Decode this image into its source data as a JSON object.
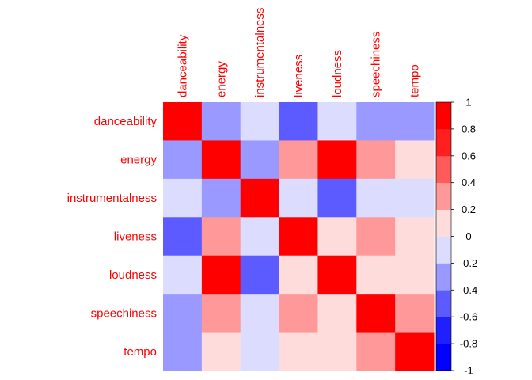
{
  "chart_data": {
    "type": "heatmap",
    "title": "",
    "variables": [
      "danceability",
      "energy",
      "instrumentalness",
      "liveness",
      "loudness",
      "speechiness",
      "tempo"
    ],
    "matrix": [
      [
        1.0,
        -0.3,
        -0.1,
        -0.6,
        -0.1,
        -0.3,
        -0.3
      ],
      [
        -0.3,
        1.0,
        -0.3,
        0.3,
        0.9,
        0.3,
        0.1
      ],
      [
        -0.1,
        -0.3,
        1.0,
        -0.1,
        -0.6,
        -0.1,
        -0.1
      ],
      [
        -0.6,
        0.3,
        -0.1,
        1.0,
        0.1,
        0.3,
        0.1
      ],
      [
        -0.1,
        0.9,
        -0.6,
        0.1,
        1.0,
        0.1,
        0.1
      ],
      [
        -0.3,
        0.3,
        -0.1,
        0.3,
        0.1,
        1.0,
        0.3
      ],
      [
        -0.3,
        0.1,
        -0.1,
        0.1,
        0.1,
        0.3,
        1.0
      ]
    ],
    "color_scale": {
      "min": -1,
      "max": 1,
      "step": 0.2,
      "ticks": [
        "-1",
        "-0.8",
        "-0.6",
        "-0.4",
        "-0.2",
        "0",
        "0.2",
        "0.4",
        "0.6",
        "0.8",
        "1"
      ],
      "bins": [
        "#0000ff",
        "#1f1fff",
        "#5b5bff",
        "#9999ff",
        "#dcdcff",
        "#ffdcdc",
        "#ff9999",
        "#ff5b5b",
        "#ff1f1f",
        "#ff0000"
      ]
    },
    "label_color": "#ff0000",
    "legend_position": "right"
  }
}
